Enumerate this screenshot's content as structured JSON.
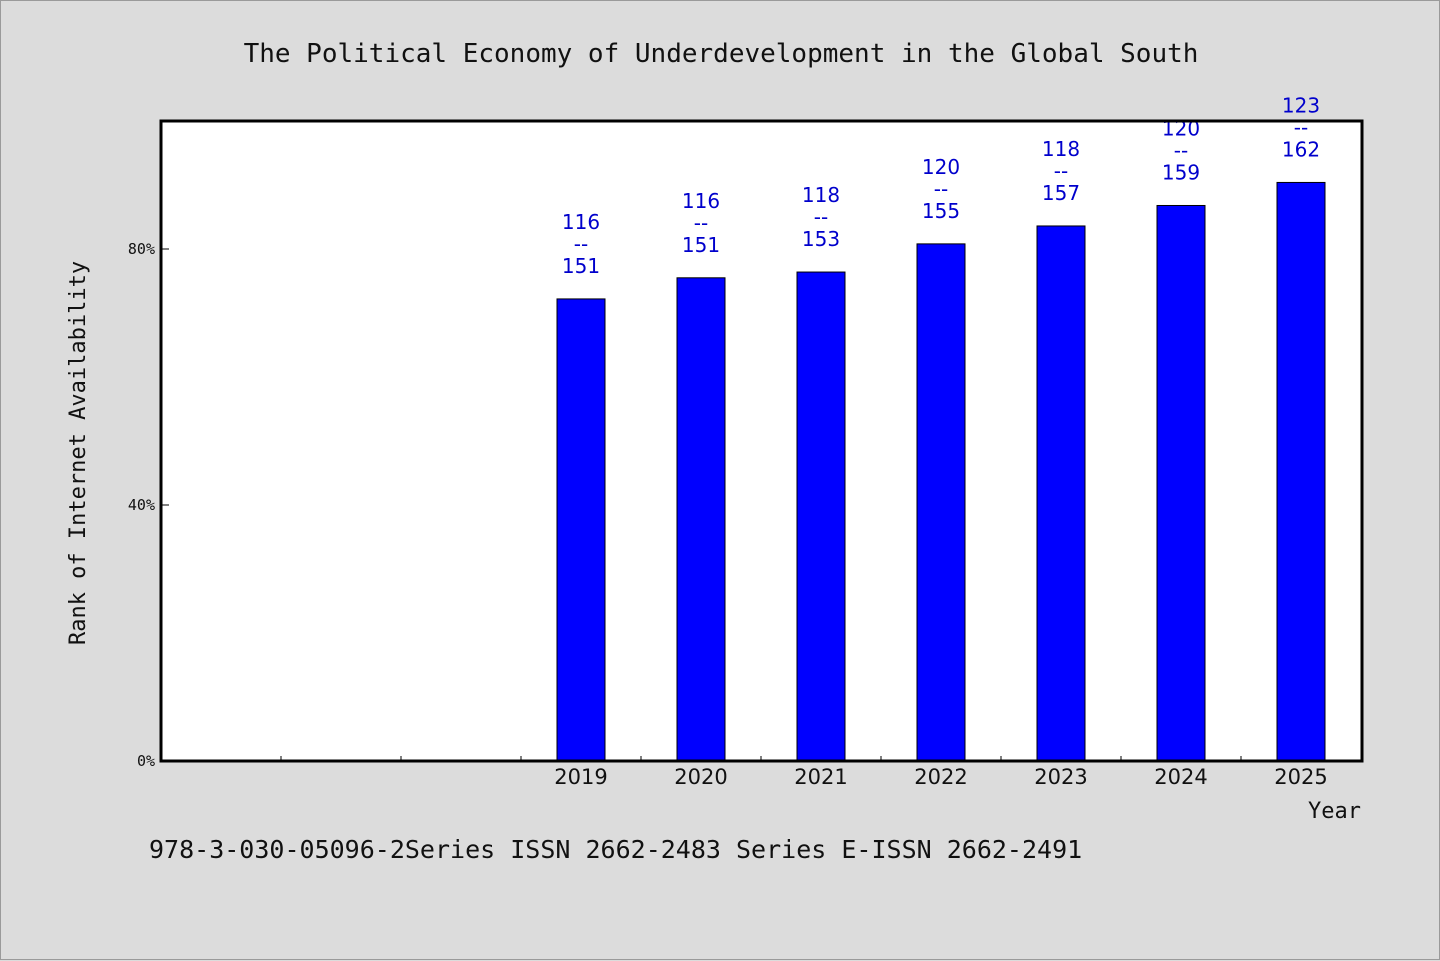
{
  "chart_data": {
    "type": "bar",
    "title": "The Political Economy of Underdevelopment in the Global South",
    "xlabel": "Year",
    "ylabel": "Rank of Internet Availability",
    "categories": [
      "",
      "",
      "",
      "2019",
      "2020",
      "2021",
      "2022",
      "2023",
      "2024",
      "2025"
    ],
    "values": [
      null,
      null,
      null,
      72.2,
      75.5,
      76.4,
      80.8,
      83.6,
      86.8,
      90.4
    ],
    "data_labels": [
      null,
      null,
      null,
      [
        "116",
        "--",
        "151"
      ],
      [
        "116",
        "--",
        "151"
      ],
      [
        "118",
        "--",
        "153"
      ],
      [
        "120",
        "--",
        "155"
      ],
      [
        "118",
        "--",
        "157"
      ],
      [
        "120",
        "--",
        "159"
      ],
      [
        "123",
        "--",
        "162"
      ]
    ],
    "ylim": [
      0,
      100
    ],
    "yticks": [
      0,
      40,
      80
    ],
    "ytick_labels": [
      "0%",
      "40%",
      "80%"
    ],
    "grid": false,
    "legend": "none",
    "colors": {
      "bar": "#0000ff",
      "data_label": "#0000cc",
      "plot_background": "#ffffff",
      "page_background": "#dcdcdc"
    }
  },
  "footer_note": "978-3-030-05096-2Series ISSN 2662-2483 Series E-ISSN 2662-2491"
}
